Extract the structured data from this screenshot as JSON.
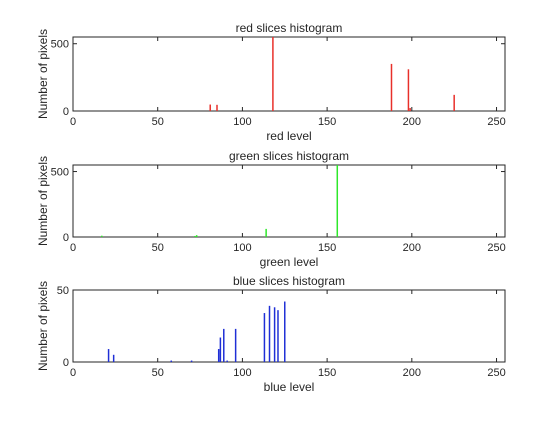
{
  "chart_data": [
    {
      "type": "bar",
      "title": "red slices histogram",
      "xlabel": "red level",
      "ylabel": "Number of pixels",
      "xlim": [
        0,
        255
      ],
      "ylim": [
        0,
        550
      ],
      "xticks": [
        0,
        50,
        100,
        150,
        200,
        250
      ],
      "yticks": [
        0,
        500
      ],
      "grid": false,
      "color": "#e8302a",
      "x": [
        81,
        85,
        118,
        188,
        198,
        199,
        225
      ],
      "values": [
        48,
        46,
        550,
        350,
        310,
        22,
        120
      ]
    },
    {
      "type": "bar",
      "title": "green slices histogram",
      "xlabel": "green level",
      "ylabel": "Number of pixels",
      "xlim": [
        0,
        255
      ],
      "ylim": [
        0,
        550
      ],
      "xticks": [
        0,
        50,
        100,
        150,
        200,
        250
      ],
      "yticks": [
        0,
        500
      ],
      "grid": false,
      "color": "#2ee82a",
      "x": [
        17,
        72,
        73,
        114,
        156
      ],
      "values": [
        10,
        8,
        14,
        62,
        550
      ]
    },
    {
      "type": "bar",
      "title": "blue slices histogram",
      "xlabel": "blue level",
      "ylabel": "Number of pixels",
      "xlim": [
        0,
        255
      ],
      "ylim": [
        0,
        50
      ],
      "xticks": [
        0,
        50,
        100,
        150,
        200,
        250
      ],
      "yticks": [
        0,
        50
      ],
      "grid": false,
      "color": "#1f2fd6",
      "x": [
        21,
        24,
        58,
        70,
        86,
        87,
        89,
        91,
        96,
        113,
        116,
        119,
        121,
        125
      ],
      "values": [
        9,
        5,
        1,
        1,
        9,
        17,
        23,
        1,
        23,
        34,
        39,
        38,
        36,
        42
      ]
    }
  ]
}
